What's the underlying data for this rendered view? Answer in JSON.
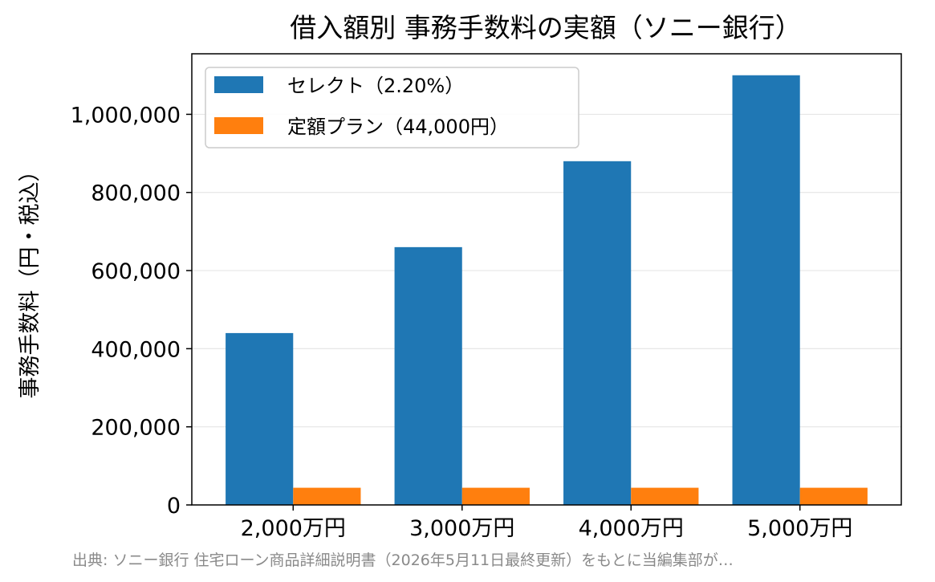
{
  "chart_data": {
    "type": "bar",
    "title": "借入額別 事務手数料の実額（ソニー銀行）",
    "xlabel": "",
    "ylabel": "事務手数料（円・税込）",
    "categories": [
      "2,000万円",
      "3,000万円",
      "4,000万円",
      "5,000万円"
    ],
    "series": [
      {
        "name": "セレクト（2.20%）",
        "values": [
          440000,
          660000,
          880000,
          1100000
        ],
        "color": "#1f77b4"
      },
      {
        "name": "定額プラン（44,000円）",
        "values": [
          44000,
          44000,
          44000,
          44000
        ],
        "color": "#ff7f0e"
      }
    ],
    "ylim": [
      0,
      1155000
    ],
    "yticks": [
      0,
      200000,
      400000,
      600000,
      800000,
      1000000
    ],
    "ytick_labels": [
      "0",
      "200,000",
      "400,000",
      "600,000",
      "800,000",
      "1,000,000"
    ],
    "grid": {
      "y": true,
      "x": false,
      "color": "#e6e6e6"
    },
    "legend": "top-left",
    "source": "出典: ソニー銀行 住宅ローン商品詳細説明書（2026年5月11日最終更新）をもとに当編集部が…"
  }
}
